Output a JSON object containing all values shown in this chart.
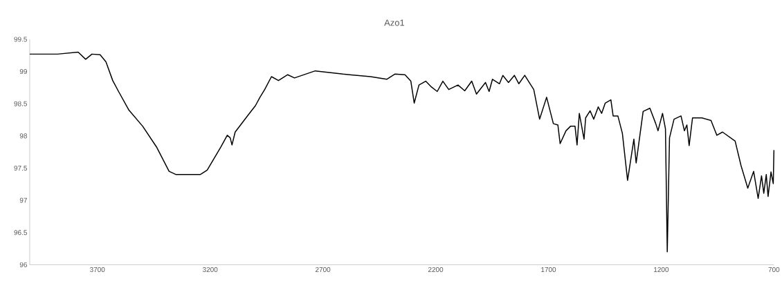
{
  "chart_data": {
    "type": "line",
    "title": "Azo1",
    "xlim": [
      4000,
      700
    ],
    "xticks": [
      3700,
      3200,
      2700,
      2200,
      1700,
      1200,
      700
    ],
    "ylim": [
      96,
      99.5
    ],
    "yticks": [
      96,
      96.5,
      97,
      97.5,
      98,
      98.5,
      99,
      99.5
    ],
    "grid": false,
    "marker": "none",
    "line_style": "solid",
    "series": [
      {
        "color": "#000000",
        "x": [
          4000,
          3877,
          3785,
          3752,
          3724,
          3688,
          3662,
          3632,
          3606,
          3560,
          3499,
          3438,
          3382,
          3351,
          3244,
          3213,
          3152,
          3124,
          3111,
          3103,
          3089,
          3065,
          3030,
          2999,
          2979,
          2958,
          2928,
          2897,
          2856,
          2826,
          2734,
          2611,
          2489,
          2417,
          2381,
          2336,
          2310,
          2295,
          2274,
          2244,
          2219,
          2193,
          2168,
          2142,
          2101,
          2071,
          2040,
          2019,
          1979,
          1963,
          1948,
          1917,
          1902,
          1877,
          1851,
          1831,
          1805,
          1765,
          1739,
          1708,
          1678,
          1658,
          1648,
          1622,
          1602,
          1582,
          1573,
          1563,
          1542,
          1535,
          1515,
          1499,
          1479,
          1464,
          1448,
          1423,
          1413,
          1392,
          1372,
          1349,
          1321,
          1311,
          1280,
          1250,
          1224,
          1214,
          1194,
          1181,
          1173,
          1163,
          1143,
          1112,
          1097,
          1086,
          1076,
          1061,
          1020,
          979,
          953,
          928,
          872,
          846,
          816,
          790,
          770,
          755,
          745,
          734,
          726,
          713,
          703,
          700
        ],
        "values": [
          99.27,
          99.27,
          99.3,
          99.19,
          99.27,
          99.26,
          99.15,
          98.86,
          98.69,
          98.4,
          98.15,
          97.83,
          97.45,
          97.4,
          97.4,
          97.47,
          97.83,
          98.01,
          97.97,
          97.86,
          98.06,
          98.17,
          98.33,
          98.47,
          98.6,
          98.72,
          98.92,
          98.86,
          98.95,
          98.9,
          99.01,
          98.96,
          98.92,
          98.88,
          98.96,
          98.95,
          98.85,
          98.51,
          98.79,
          98.85,
          98.76,
          98.69,
          98.85,
          98.72,
          98.79,
          98.7,
          98.85,
          98.65,
          98.83,
          98.69,
          98.88,
          98.81,
          98.94,
          98.83,
          98.94,
          98.81,
          98.94,
          98.72,
          98.26,
          98.6,
          98.19,
          98.17,
          97.88,
          98.08,
          98.15,
          98.15,
          97.86,
          98.35,
          97.95,
          98.28,
          98.39,
          98.26,
          98.45,
          98.35,
          98.51,
          98.56,
          98.31,
          98.31,
          98.04,
          97.31,
          97.95,
          97.58,
          98.38,
          98.43,
          98.19,
          98.08,
          98.35,
          98.11,
          96.2,
          97.97,
          98.26,
          98.31,
          98.08,
          98.17,
          97.85,
          98.28,
          98.28,
          98.24,
          98.01,
          98.06,
          97.92,
          97.54,
          97.19,
          97.45,
          97.03,
          97.38,
          97.11,
          97.4,
          97.06,
          97.44,
          97.26,
          97.78
        ]
      }
    ]
  }
}
